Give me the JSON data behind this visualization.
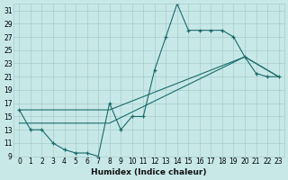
{
  "xlabel": "Humidex (Indice chaleur)",
  "background_color": "#c8e8e8",
  "grid_color": "#a8cccc",
  "line_color": "#1a6b6b",
  "xlim": [
    -0.5,
    23.5
  ],
  "ylim": [
    9,
    32
  ],
  "xticks": [
    0,
    1,
    2,
    3,
    4,
    5,
    6,
    7,
    8,
    9,
    10,
    11,
    12,
    13,
    14,
    15,
    16,
    17,
    18,
    19,
    20,
    21,
    22,
    23
  ],
  "yticks": [
    9,
    11,
    13,
    15,
    17,
    19,
    21,
    23,
    25,
    27,
    29,
    31
  ],
  "line1_x": [
    0,
    1,
    2,
    3,
    4,
    5,
    6,
    7,
    8,
    9,
    10,
    11,
    12,
    13,
    14,
    15,
    16,
    17,
    18,
    19,
    20,
    21,
    22,
    23
  ],
  "line1_y": [
    16,
    13,
    13,
    11,
    10,
    9.5,
    9.5,
    9,
    17,
    13,
    15,
    15,
    22,
    27,
    32,
    28,
    28,
    28,
    28,
    27,
    24,
    21.5,
    21,
    21
  ],
  "line2_x": [
    0,
    8,
    20,
    23
  ],
  "line2_y": [
    14,
    14,
    24,
    21
  ],
  "line3_x": [
    0,
    8,
    20,
    23
  ],
  "line3_y": [
    16,
    16,
    24,
    21
  ],
  "ticklabel_fontsize": 5.5,
  "xlabel_fontsize": 6.5
}
